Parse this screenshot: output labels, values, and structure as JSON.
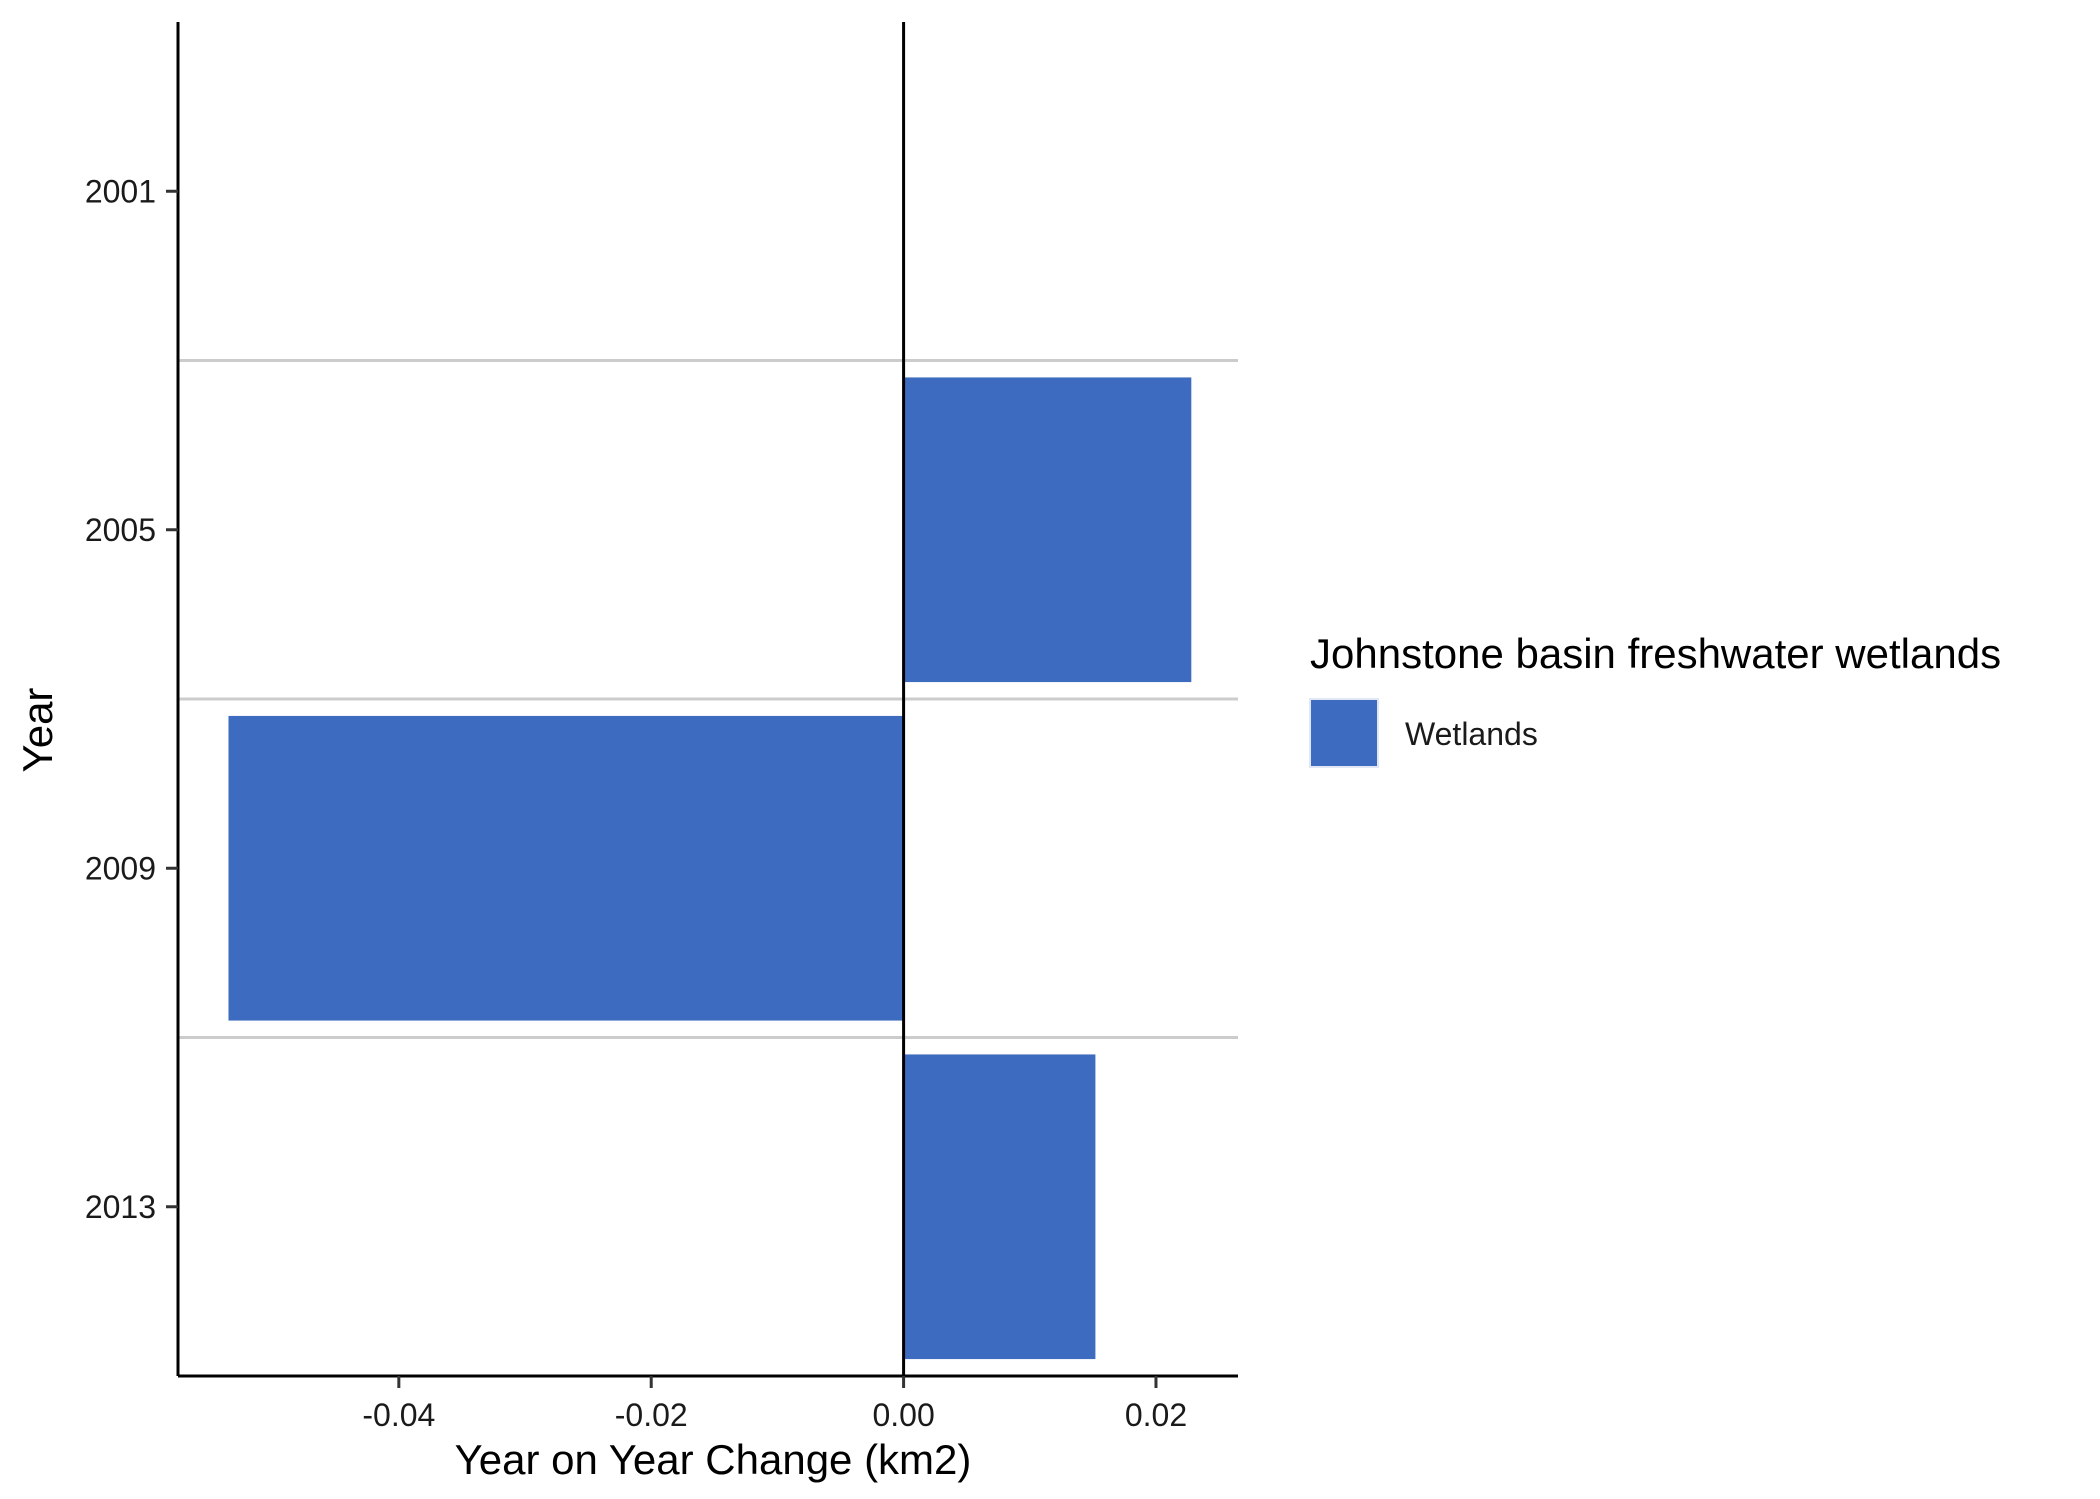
{
  "chart_data": {
    "type": "bar",
    "orientation": "horizontal",
    "categories": [
      "2001",
      "2005",
      "2009",
      "2013"
    ],
    "series": [
      {
        "name": "Wetlands",
        "values": [
          0,
          0.0228,
          -0.0535,
          0.0152
        ],
        "color": "#3d6bbf"
      }
    ],
    "xlabel": "Year on Year Change (km2)",
    "ylabel": "Year",
    "x_ticks": [
      -0.04,
      -0.02,
      0.0,
      0.02
    ],
    "x_tick_labels": [
      "-0.04",
      "-0.02",
      "0.00",
      "0.02"
    ],
    "xlim": [
      -0.0575,
      0.0265
    ],
    "grid": "horizontal lines between categories",
    "legend": {
      "title": "Johnstone basin freshwater wetlands",
      "placement": "right"
    },
    "zero_line_color": "#000000",
    "grid_color": "#cccccc"
  }
}
